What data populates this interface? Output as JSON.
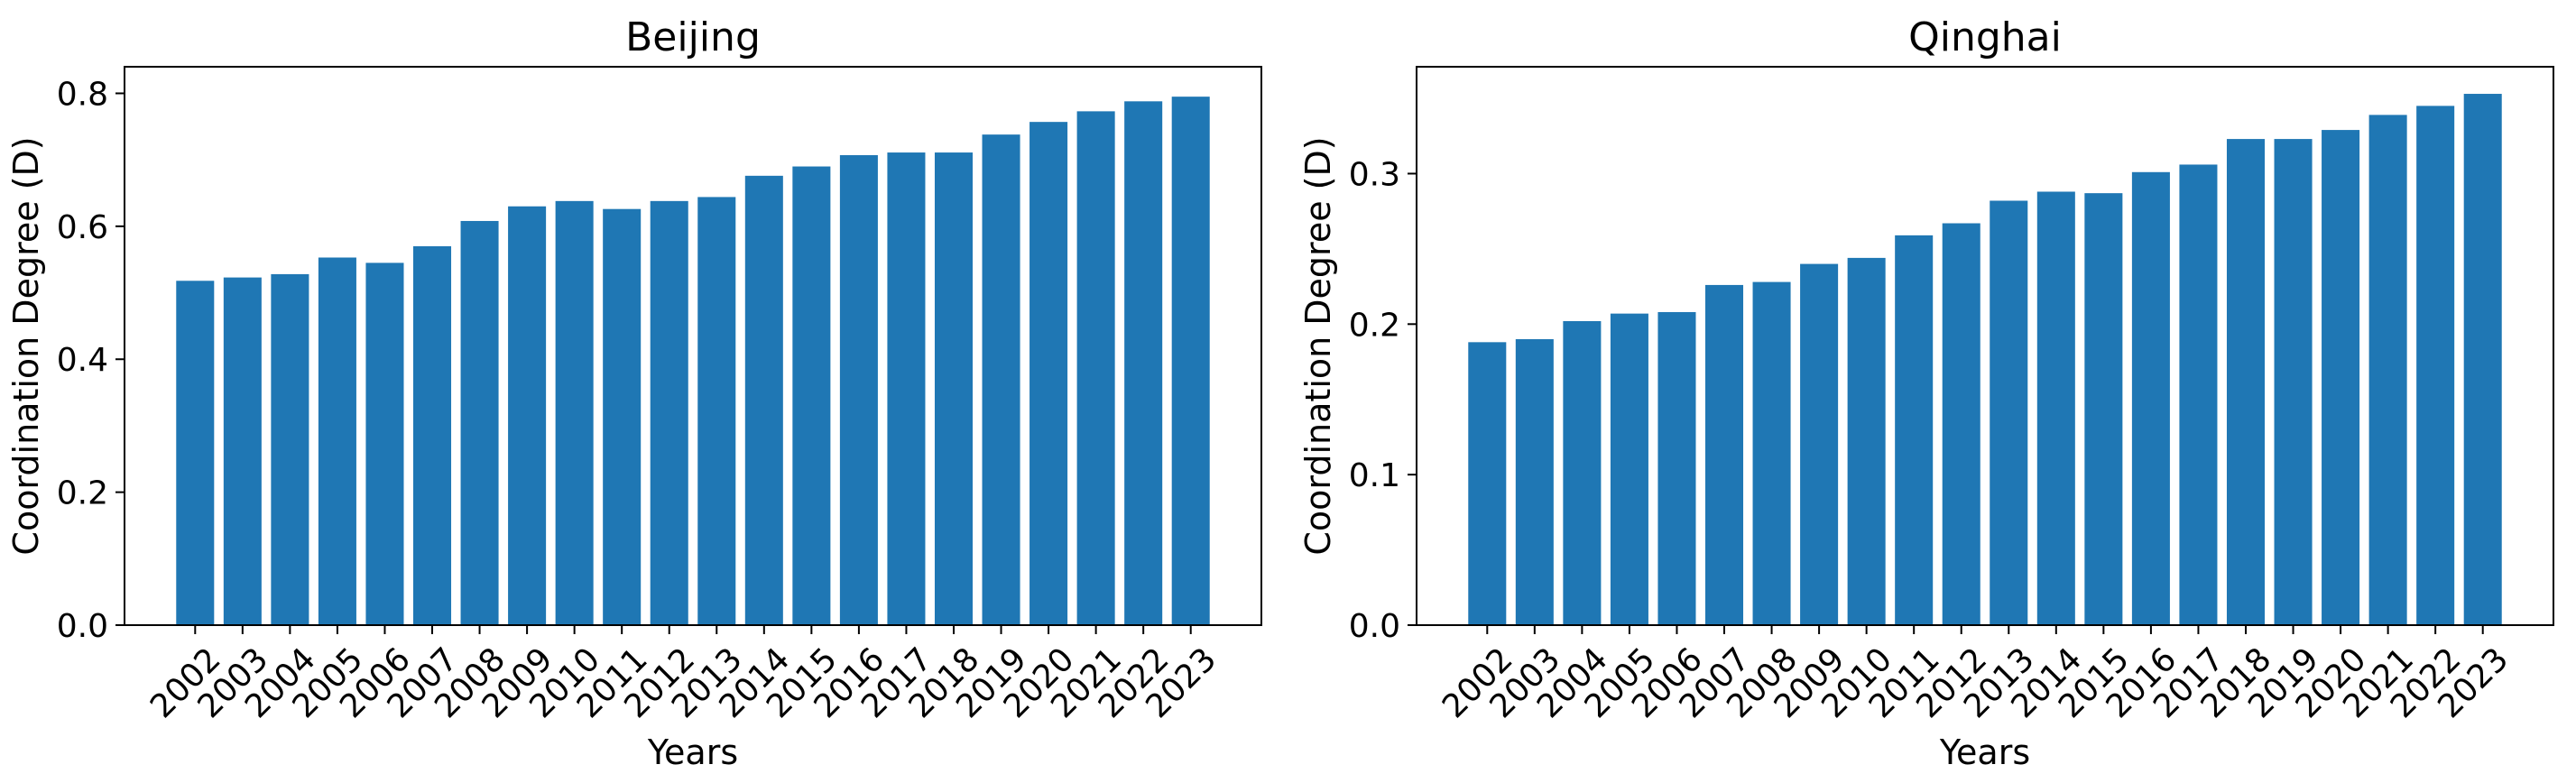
{
  "chart_data": [
    {
      "type": "bar",
      "title": "Beijing",
      "xlabel": "Years",
      "ylabel": "Coordination Degree (D)",
      "categories": [
        "2002",
        "2003",
        "2004",
        "2005",
        "2006",
        "2007",
        "2008",
        "2009",
        "2010",
        "2011",
        "2012",
        "2013",
        "2014",
        "2015",
        "2016",
        "2017",
        "2018",
        "2019",
        "2020",
        "2021",
        "2022",
        "2023"
      ],
      "values": [
        0.518,
        0.523,
        0.528,
        0.553,
        0.545,
        0.57,
        0.608,
        0.63,
        0.638,
        0.626,
        0.638,
        0.644,
        0.676,
        0.69,
        0.707,
        0.711,
        0.711,
        0.738,
        0.757,
        0.773,
        0.788,
        0.795
      ],
      "ylim": [
        0,
        0.84
      ],
      "yticks": [
        0.0,
        0.2,
        0.4,
        0.6,
        0.8
      ],
      "ytick_labels": [
        "0.0",
        "0.2",
        "0.4",
        "0.6",
        "0.8"
      ],
      "grid": false,
      "color": "#1f77b4"
    },
    {
      "type": "bar",
      "title": "Qinghai",
      "xlabel": "Years",
      "ylabel": "Coordination Degree (D)",
      "categories": [
        "2002",
        "2003",
        "2004",
        "2005",
        "2006",
        "2007",
        "2008",
        "2009",
        "2010",
        "2011",
        "2012",
        "2013",
        "2014",
        "2015",
        "2016",
        "2017",
        "2018",
        "2019",
        "2020",
        "2021",
        "2022",
        "2023"
      ],
      "values": [
        0.188,
        0.19,
        0.202,
        0.207,
        0.208,
        0.226,
        0.228,
        0.24,
        0.244,
        0.259,
        0.267,
        0.282,
        0.288,
        0.287,
        0.301,
        0.306,
        0.323,
        0.323,
        0.329,
        0.339,
        0.345,
        0.353
      ],
      "ylim": [
        0,
        0.371
      ],
      "yticks": [
        0.0,
        0.1,
        0.2,
        0.3
      ],
      "ytick_labels": [
        "0.0",
        "0.1",
        "0.2",
        "0.3"
      ],
      "grid": false,
      "color": "#1f77b4"
    }
  ]
}
